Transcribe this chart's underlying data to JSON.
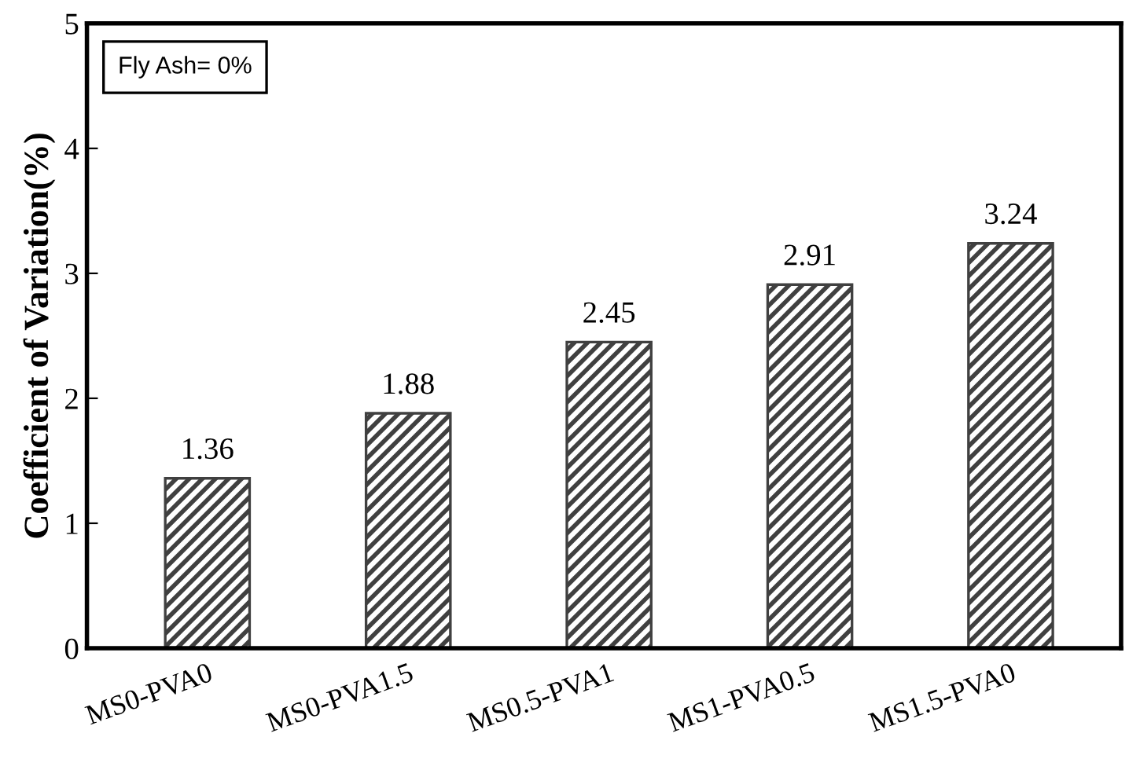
{
  "chart_data": {
    "type": "bar",
    "ylabel": "Coefficient of Variation(%)",
    "categories": [
      "MS0-PVA0",
      "MS0-PVA1.5",
      "MS0.5-PVA1",
      "MS1-PVA0.5",
      "MS1.5-PVA0"
    ],
    "values": [
      1.36,
      1.88,
      2.45,
      2.91,
      3.24
    ],
    "color": "#404040",
    "ylim": [
      0,
      5
    ],
    "yticks": [
      0,
      1,
      2,
      3,
      4,
      5
    ],
    "data_labels": true,
    "grid": false,
    "annotations": [
      "Fly Ash= 0%"
    ]
  }
}
